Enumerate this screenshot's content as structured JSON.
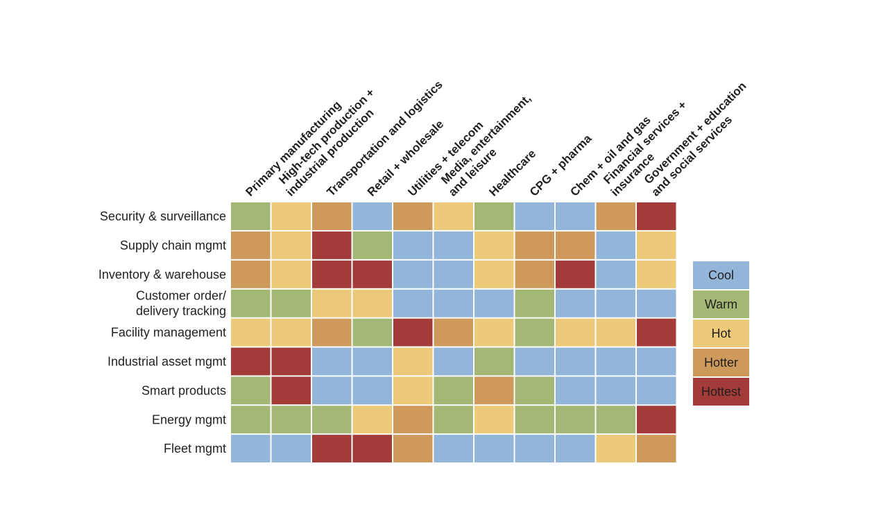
{
  "chart_data": {
    "type": "heatmap",
    "title": "",
    "columns": [
      [
        "Primary manufacturing"
      ],
      [
        "High-tech production +",
        "industrial production"
      ],
      [
        "Transportation and logistics"
      ],
      [
        "Retail + wholesale"
      ],
      [
        "Utilities + telecom"
      ],
      [
        "Media, entertainment,",
        "and leisure"
      ],
      [
        "Healthcare"
      ],
      [
        "CPG + pharma"
      ],
      [
        "Chem + oil and gas"
      ],
      [
        "Financial services +",
        "insurance"
      ],
      [
        "Government + education",
        "and social services"
      ]
    ],
    "rows": [
      [
        "Security & surveillance"
      ],
      [
        "Supply chain mgmt"
      ],
      [
        "Inventory & warehouse"
      ],
      [
        "Customer order/",
        "delivery tracking"
      ],
      [
        "Facility management"
      ],
      [
        "Industrial asset mgmt"
      ],
      [
        "Smart products"
      ],
      [
        "Energy mgmt"
      ],
      [
        "Fleet mgmt"
      ]
    ],
    "legend": {
      "placement": "right",
      "levels": [
        {
          "label": "Cool",
          "color": "#93b5d9"
        },
        {
          "label": "Warm",
          "color": "#a3b874"
        },
        {
          "label": "Hot",
          "color": "#ecca7a"
        },
        {
          "label": "Hotter",
          "color": "#cd9a5b"
        },
        {
          "label": "Hottest",
          "color": "#a33b38"
        }
      ]
    },
    "values": [
      [
        "Warm",
        "Hot",
        "Hotter",
        "Cool",
        "Hotter",
        "Hot",
        "Warm",
        "Cool",
        "Cool",
        "Hotter",
        "Hottest"
      ],
      [
        "Hotter",
        "Hot",
        "Hottest",
        "Warm",
        "Cool",
        "Cool",
        "Hot",
        "Hotter",
        "Hotter",
        "Cool",
        "Hot"
      ],
      [
        "Hotter",
        "Hot",
        "Hottest",
        "Hottest",
        "Cool",
        "Cool",
        "Hot",
        "Hotter",
        "Hottest",
        "Cool",
        "Hot"
      ],
      [
        "Warm",
        "Warm",
        "Hot",
        "Hot",
        "Cool",
        "Cool",
        "Cool",
        "Warm",
        "Cool",
        "Cool",
        "Cool"
      ],
      [
        "Hot",
        "Hot",
        "Hotter",
        "Warm",
        "Hottest",
        "Hotter",
        "Hot",
        "Warm",
        "Hot",
        "Hot",
        "Hottest"
      ],
      [
        "Hottest",
        "Hottest",
        "Cool",
        "Cool",
        "Hot",
        "Cool",
        "Warm",
        "Cool",
        "Cool",
        "Cool",
        "Cool"
      ],
      [
        "Warm",
        "Hottest",
        "Cool",
        "Cool",
        "Hot",
        "Warm",
        "Hotter",
        "Warm",
        "Cool",
        "Cool",
        "Cool"
      ],
      [
        "Warm",
        "Warm",
        "Warm",
        "Hot",
        "Hotter",
        "Warm",
        "Hot",
        "Warm",
        "Warm",
        "Warm",
        "Hottest"
      ],
      [
        "Cool",
        "Cool",
        "Hottest",
        "Hottest",
        "Hotter",
        "Cool",
        "Cool",
        "Cool",
        "Cool",
        "Hot",
        "Hotter"
      ]
    ]
  }
}
